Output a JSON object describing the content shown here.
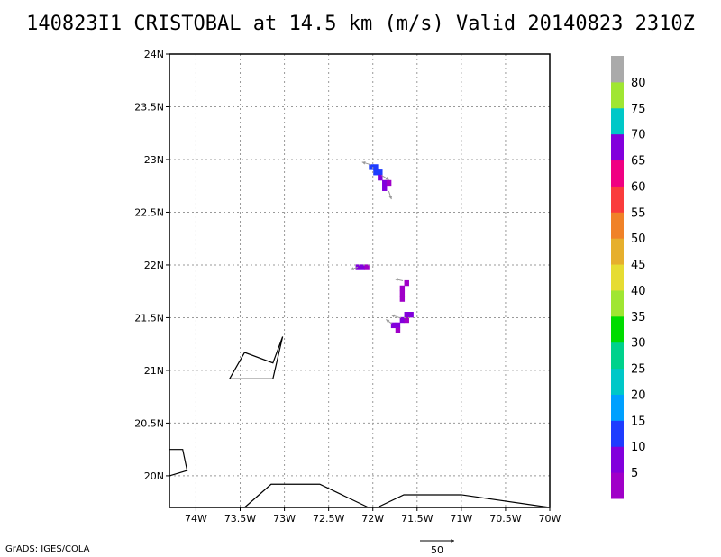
{
  "title": "140823I1 CRISTOBAL at 14.5 km (m/s) Valid 20140823 2310Z",
  "credit": "GrADS: IGES/COLA",
  "chart_data": {
    "type": "heatmap",
    "title": "140823I1 CRISTOBAL at 14.5 km (m/s) Valid 20140823 2310Z",
    "xlim": [
      -74.3,
      -70.0
    ],
    "ylim": [
      19.7,
      24.0
    ],
    "x_ticks": [
      -74,
      -73.5,
      -73,
      -72.5,
      -72,
      -71.5,
      -71,
      -70.5,
      -70
    ],
    "x_tick_labels": [
      "74W",
      "73.5W",
      "73W",
      "72.5W",
      "72W",
      "71.5W",
      "71W",
      "70.5W",
      "70W"
    ],
    "y_ticks": [
      20,
      20.5,
      21,
      21.5,
      22,
      22.5,
      23,
      23.5,
      24
    ],
    "y_tick_labels": [
      "20N",
      "20.5N",
      "21N",
      "21.5N",
      "22N",
      "22.5N",
      "23N",
      "23.5N",
      "24N"
    ],
    "grid": true,
    "colorbar": {
      "levels": [
        5,
        10,
        15,
        20,
        25,
        30,
        35,
        40,
        45,
        50,
        55,
        60,
        65,
        70,
        75,
        80
      ],
      "labels": [
        "5",
        "10",
        "15",
        "20",
        "25",
        "30",
        "35",
        "40",
        "45",
        "50",
        "55",
        "60",
        "65",
        "70",
        "75",
        "80"
      ],
      "colors": [
        "#a000c8",
        "#8200dc",
        "#1e3cff",
        "#00a0ff",
        "#00c8c8",
        "#00d28c",
        "#00dc00",
        "#a0e632",
        "#e6dc32",
        "#e6af2d",
        "#f08228",
        "#fa3c3c",
        "#f00082",
        "#8200dc",
        "#00c8c8",
        "#a0e632",
        "#aaaaaa"
      ]
    },
    "cells": [
      {
        "lon": -72.02,
        "lat": 22.93,
        "color": "#1e3cff"
      },
      {
        "lon": -71.97,
        "lat": 22.93,
        "color": "#1e3cff"
      },
      {
        "lon": -71.97,
        "lat": 22.88,
        "color": "#1e3cff"
      },
      {
        "lon": -71.92,
        "lat": 22.88,
        "color": "#1e3cff"
      },
      {
        "lon": -71.92,
        "lat": 22.83,
        "color": "#8200dc"
      },
      {
        "lon": -71.87,
        "lat": 22.78,
        "color": "#8200dc"
      },
      {
        "lon": -71.87,
        "lat": 22.73,
        "color": "#8200dc"
      },
      {
        "lon": -71.82,
        "lat": 22.78,
        "color": "#a000c8"
      },
      {
        "lon": -72.17,
        "lat": 21.98,
        "color": "#8200dc"
      },
      {
        "lon": -72.12,
        "lat": 21.98,
        "color": "#8200dc"
      },
      {
        "lon": -72.07,
        "lat": 21.98,
        "color": "#a000c8"
      },
      {
        "lon": -71.62,
        "lat": 21.83,
        "color": "#a000c8"
      },
      {
        "lon": -71.67,
        "lat": 21.78,
        "color": "#a000c8"
      },
      {
        "lon": -71.67,
        "lat": 21.73,
        "color": "#a000c8"
      },
      {
        "lon": -71.67,
        "lat": 21.68,
        "color": "#a000c8"
      },
      {
        "lon": -71.62,
        "lat": 21.53,
        "color": "#8200dc"
      },
      {
        "lon": -71.57,
        "lat": 21.53,
        "color": "#8200dc"
      },
      {
        "lon": -71.67,
        "lat": 21.48,
        "color": "#8200dc"
      },
      {
        "lon": -71.62,
        "lat": 21.48,
        "color": "#a000c8"
      },
      {
        "lon": -71.77,
        "lat": 21.43,
        "color": "#8200dc"
      },
      {
        "lon": -71.72,
        "lat": 21.43,
        "color": "#8200dc"
      },
      {
        "lon": -71.72,
        "lat": 21.38,
        "color": "#a000c8"
      }
    ],
    "vectors": [
      {
        "lon": -72.02,
        "lat": 22.95,
        "u": -1,
        "v": 0.3
      },
      {
        "lon": -71.9,
        "lat": 22.85,
        "u": 0.8,
        "v": -0.5
      },
      {
        "lon": -71.82,
        "lat": 22.7,
        "u": 0.3,
        "v": -0.9
      },
      {
        "lon": -72.17,
        "lat": 21.98,
        "u": -0.8,
        "v": -0.3
      },
      {
        "lon": -71.66,
        "lat": 21.85,
        "u": -0.9,
        "v": 0.2
      },
      {
        "lon": -71.7,
        "lat": 21.5,
        "u": -0.9,
        "v": 0.3
      },
      {
        "lon": -71.78,
        "lat": 21.44,
        "u": -0.7,
        "v": 0.5
      }
    ],
    "reference_vector": {
      "label": "50",
      "value": 50
    },
    "coastlines": [
      [
        [
          -73.62,
          20.92
        ],
        [
          -73.13,
          20.92
        ],
        [
          -73.02,
          21.32
        ],
        [
          -73.13,
          21.07
        ],
        [
          -73.45,
          21.17
        ],
        [
          -73.62,
          20.92
        ]
      ],
      [
        [
          -74.3,
          20.25
        ],
        [
          -74.15,
          20.25
        ],
        [
          -74.1,
          20.05
        ],
        [
          -74.3,
          20.0
        ]
      ],
      [
        [
          -73.45,
          19.7
        ],
        [
          -73.15,
          19.92
        ],
        [
          -72.6,
          19.92
        ],
        [
          -72.05,
          19.7
        ]
      ],
      [
        [
          -71.95,
          19.7
        ],
        [
          -71.65,
          19.82
        ],
        [
          -71.0,
          19.82
        ],
        [
          -70.0,
          19.7
        ]
      ]
    ]
  }
}
